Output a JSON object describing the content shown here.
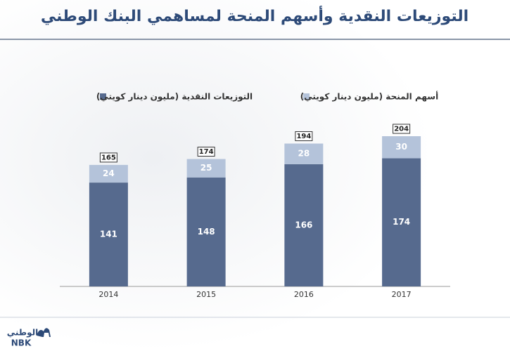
{
  "chart_data": {
    "type": "stacked_bar",
    "title": "التوزيعات النقدية وأسهم المنحة لمساهمي البنك الوطني",
    "categories": [
      "2014",
      "2015",
      "2016",
      "2017"
    ],
    "series": [
      {
        "name": "التوزيعات النقدية (مليون دينار كويتي)",
        "color": "#566a8e",
        "values": [
          141,
          148,
          166,
          174
        ]
      },
      {
        "name": "أسهم المنحة (مليون دينار كويتي)",
        "color": "#b4c3da",
        "values": [
          24,
          25,
          28,
          30
        ]
      }
    ],
    "totals": [
      165,
      174,
      194,
      204
    ]
  },
  "logo": {
    "arabic": "الوطني",
    "latin": "NBK"
  }
}
